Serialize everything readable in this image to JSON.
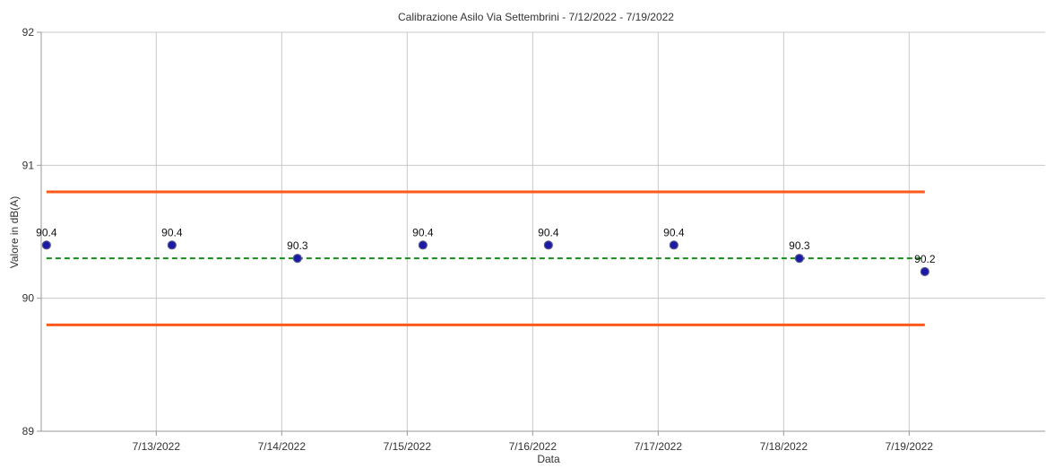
{
  "chart_data": {
    "type": "scatter",
    "title": "Calibrazione Asilo Via Settembrini - 7/12/2022 - 7/19/2022",
    "xlabel": "Data",
    "ylabel": "Valore in dB(A)",
    "xlim": [
      "2022-07-12T02:00",
      "2022-07-20T02:00"
    ],
    "ylim": [
      89,
      92
    ],
    "yticks": [
      89,
      90,
      91,
      92
    ],
    "xticks": [
      "7/13/2022",
      "7/14/2022",
      "7/15/2022",
      "7/16/2022",
      "7/17/2022",
      "7/18/2022",
      "7/19/2022"
    ],
    "grid": true,
    "legend": "none",
    "series": [
      {
        "kind": "points",
        "color": "#1a1aa6",
        "points": [
          {
            "x": "2022-07-12T03:00",
            "y": 90.4,
            "label": "90.4"
          },
          {
            "x": "2022-07-13T03:00",
            "y": 90.4,
            "label": "90.4"
          },
          {
            "x": "2022-07-14T03:00",
            "y": 90.3,
            "label": "90.3"
          },
          {
            "x": "2022-07-15T03:00",
            "y": 90.4,
            "label": "90.4"
          },
          {
            "x": "2022-07-16T03:00",
            "y": 90.4,
            "label": "90.4"
          },
          {
            "x": "2022-07-17T03:00",
            "y": 90.4,
            "label": "90.4"
          },
          {
            "x": "2022-07-18T03:00",
            "y": 90.3,
            "label": "90.3"
          },
          {
            "x": "2022-07-19T03:00",
            "y": 90.2,
            "label": "90.2"
          }
        ]
      },
      {
        "kind": "hline",
        "color": "#ff5a1a",
        "style": "solid",
        "y": 90.8,
        "x": [
          "2022-07-12T03:00",
          "2022-07-19T03:00"
        ]
      },
      {
        "kind": "hline",
        "color": "#ff5a1a",
        "style": "solid",
        "y": 89.8,
        "x": [
          "2022-07-12T03:00",
          "2022-07-19T03:00"
        ]
      },
      {
        "kind": "hline",
        "color": "#1a8a1a",
        "style": "dashed",
        "y": 90.3,
        "x": [
          "2022-07-12T03:00",
          "2022-07-19T03:00"
        ]
      }
    ]
  }
}
